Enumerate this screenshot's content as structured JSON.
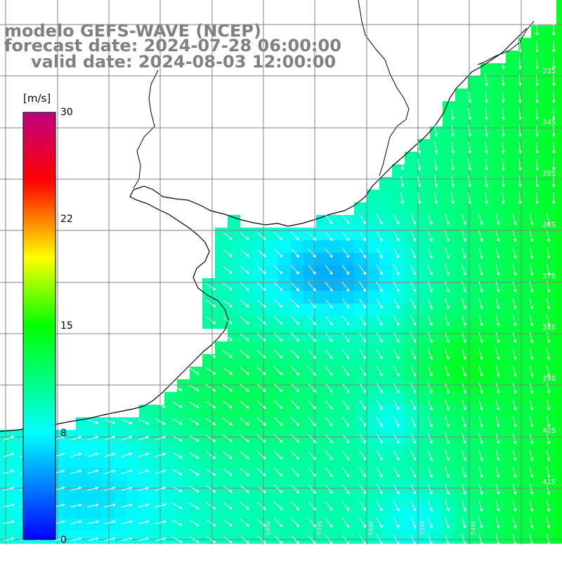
{
  "title": {
    "model": "modelo GEFS-WAVE (NCEP)",
    "forecast": "forecast date: 2024-07-28 06:00:00",
    "valid": "valid date: 2024-08-03 12:00:00"
  },
  "colorbar": {
    "units": "[m/s]",
    "ticks": [
      "30",
      "22",
      "15",
      "8",
      "0"
    ],
    "tick_values": [
      30,
      22,
      15,
      8,
      0
    ],
    "range": [
      0,
      30
    ],
    "colors": [
      "#0000ff",
      "#00ffff",
      "#00ff00",
      "#ffff00",
      "#ff0000",
      "#c00080"
    ]
  },
  "map": {
    "latitude_labels": [
      "33S",
      "34S",
      "35S",
      "36S",
      "37S",
      "38S",
      "39S",
      "40S",
      "41S"
    ],
    "longitude_labels": [
      "58W",
      "57W",
      "56W",
      "55W",
      "54W"
    ],
    "land_color": "#ffffff",
    "grid_color": "#808080",
    "coast_color": "#000000",
    "vector_color": "#ffffff"
  }
}
